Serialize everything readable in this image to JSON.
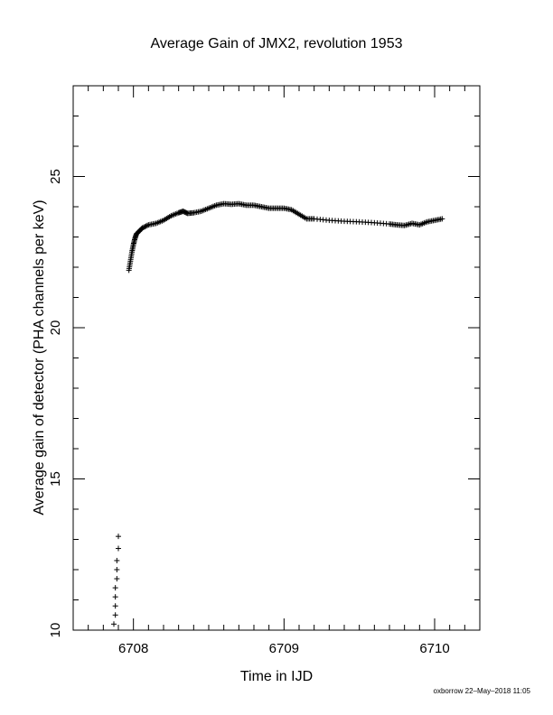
{
  "chart_data": {
    "type": "scatter",
    "title": "Average Gain of JMX2, revolution 1953",
    "xlabel": "Time in IJD",
    "ylabel": "Average gain of detector (PHA channels per keV)",
    "xlim": [
      6707.6,
      6710.3
    ],
    "ylim": [
      10,
      28
    ],
    "x_ticks": [
      6708,
      6709,
      6710
    ],
    "y_ticks": [
      10,
      15,
      20,
      25
    ],
    "x_tick_labels": [
      "6708",
      "6709",
      "6710"
    ],
    "y_tick_labels": [
      "10",
      "15",
      "20",
      "25"
    ],
    "grid": false,
    "marker": "+",
    "series": [
      {
        "x": [
          6707.87,
          6707.88,
          6707.88,
          6707.88,
          6707.88,
          6707.89,
          6707.89,
          6707.89,
          6707.9,
          6707.9,
          6707.97,
          6707.98,
          6707.99,
          6708.0,
          6708.01,
          6708.02,
          6708.04,
          6708.06,
          6708.1,
          6708.15,
          6708.2,
          6708.25,
          6708.3,
          6708.33,
          6708.36,
          6708.4,
          6708.45,
          6708.5,
          6708.55,
          6708.6,
          6708.65,
          6708.7,
          6708.75,
          6708.8,
          6708.85,
          6708.9,
          6708.95,
          6709.0,
          6709.05,
          6709.1,
          6709.15,
          6709.2,
          6709.3,
          6709.4,
          6709.5,
          6709.6,
          6709.7,
          6709.75,
          6709.8,
          6709.85,
          6709.9,
          6709.95,
          6710.0,
          6710.05
        ],
        "y": [
          10.2,
          10.5,
          10.8,
          11.1,
          11.4,
          11.7,
          12.0,
          12.3,
          12.7,
          13.1,
          21.9,
          22.2,
          22.5,
          22.75,
          22.95,
          23.1,
          23.2,
          23.3,
          23.4,
          23.45,
          23.55,
          23.7,
          23.8,
          23.85,
          23.78,
          23.8,
          23.85,
          23.95,
          24.05,
          24.1,
          24.08,
          24.1,
          24.05,
          24.05,
          24.0,
          23.95,
          23.95,
          23.95,
          23.9,
          23.75,
          23.6,
          23.6,
          23.55,
          23.52,
          23.5,
          23.47,
          23.43,
          23.4,
          23.38,
          23.45,
          23.4,
          23.5,
          23.55,
          23.6
        ]
      }
    ]
  },
  "footer": "oxborrow 22–May–2018 11:05"
}
